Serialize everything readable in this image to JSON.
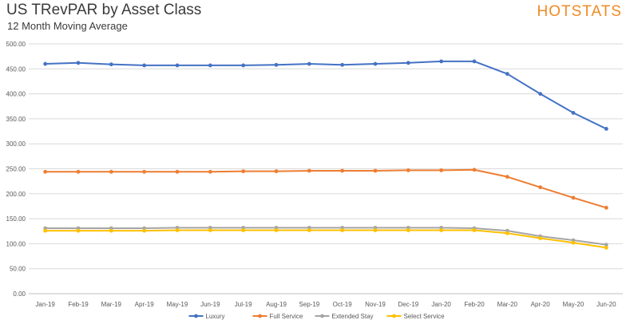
{
  "header": {
    "title": "US TRevPAR by Asset Class",
    "subtitle": "12 Month Moving Average",
    "logo": "HOTSTATS"
  },
  "chart_data": {
    "type": "line",
    "title": "US TRevPAR by Asset Class",
    "subtitle": "12 Month Moving Average",
    "xlabel": "",
    "ylabel": "",
    "ylim": [
      0,
      500
    ],
    "ytick_step": 50,
    "ytick_labels": [
      "0.00",
      "50.00",
      "100.00",
      "150.00",
      "200.00",
      "250.00",
      "300.00",
      "350.00",
      "400.00",
      "450.00",
      "500.00"
    ],
    "grid": "horizontal",
    "legend_position": "bottom",
    "categories": [
      "Jan-19",
      "Feb-19",
      "Mar-19",
      "Apr-19",
      "May-19",
      "Jun-19",
      "Jul-19",
      "Aug-19",
      "Sep-19",
      "Oct-19",
      "Nov-19",
      "Dec-19",
      "Jan-20",
      "Feb-20",
      "Mar-20",
      "Apr-20",
      "May-20",
      "Jun-20"
    ],
    "series": [
      {
        "name": "Luxury",
        "color": "#4472c4",
        "values": [
          460,
          462,
          459,
          457,
          457,
          457,
          457,
          458,
          460,
          458,
          460,
          462,
          465,
          465,
          440,
          400,
          362,
          330
        ]
      },
      {
        "name": "Full Service",
        "color": "#ed7d31",
        "values": [
          244,
          244,
          244,
          244,
          244,
          244,
          245,
          245,
          246,
          246,
          246,
          247,
          247,
          248,
          234,
          213,
          192,
          172
        ]
      },
      {
        "name": "Extended Stay",
        "color": "#a5a5a5",
        "values": [
          131,
          131,
          131,
          131,
          132,
          132,
          132,
          132,
          132,
          132,
          132,
          132,
          132,
          131,
          126,
          115,
          107,
          98
        ]
      },
      {
        "name": "Select Service",
        "color": "#ffc000",
        "values": [
          126,
          126,
          126,
          126,
          127,
          127,
          127,
          127,
          127,
          127,
          127,
          127,
          127,
          127,
          121,
          111,
          102,
          92
        ]
      }
    ]
  }
}
